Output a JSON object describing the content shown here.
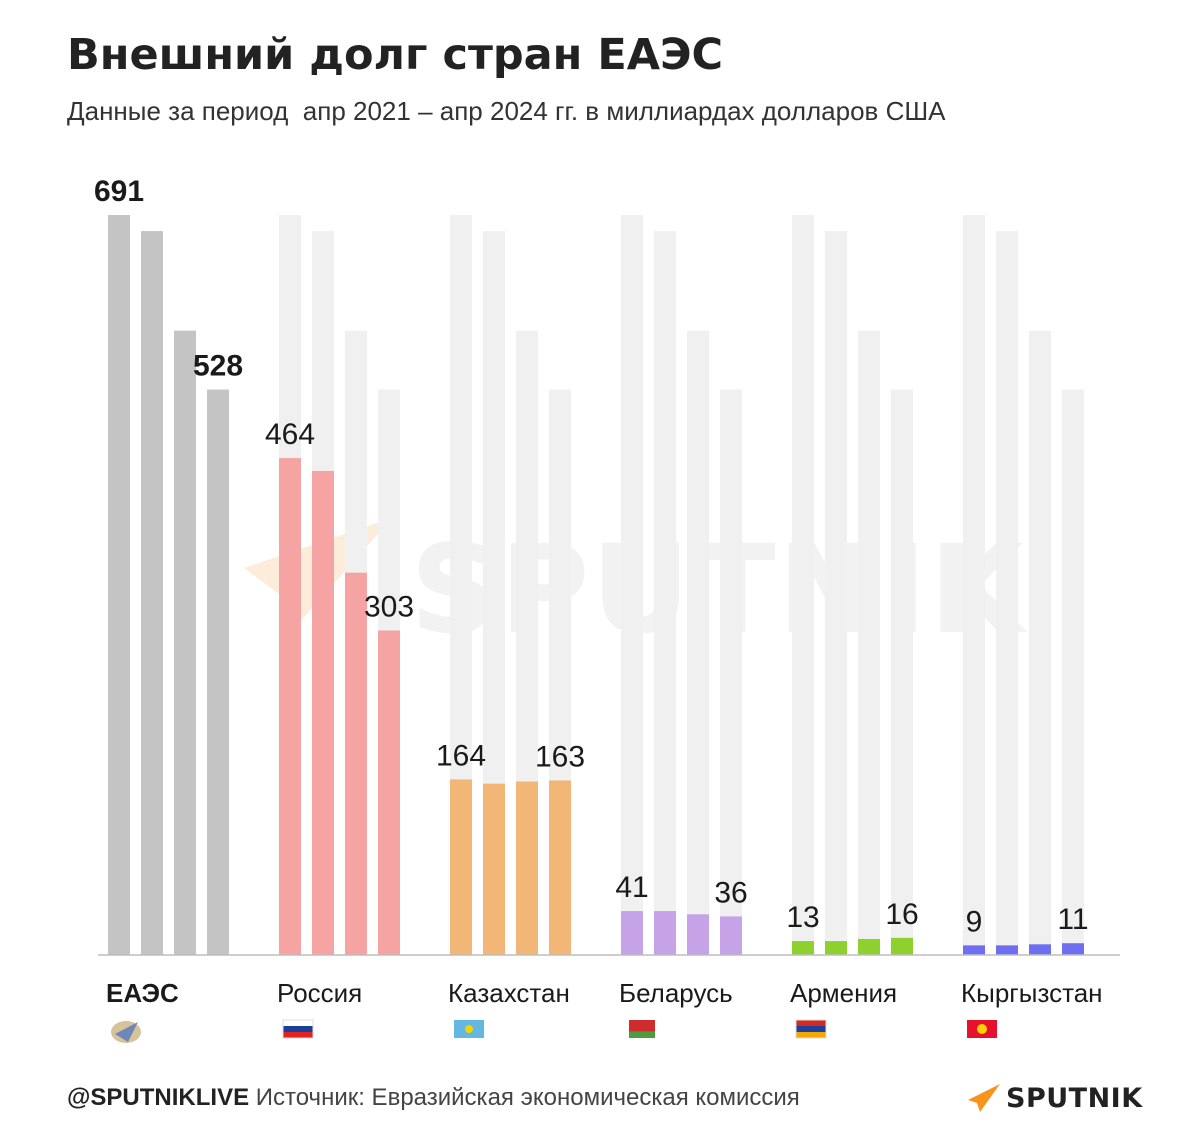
{
  "title": "Внешний долг стран ЕАЭС",
  "subtitle": "Данные за период  апр 2021 – апр 2024 гг. в миллиардах долларов США",
  "footer": {
    "handle": "@SPUTNIKLIVE",
    "source": "Источник: Евразийская экономическая комиссия"
  },
  "brand": {
    "name": "SPUTNIK",
    "watermark": "SPUTNIK",
    "accent": "#f7941d"
  },
  "chart_data": {
    "type": "bar",
    "title": "Внешний долг стран ЕАЭС",
    "subtitle": "Данные за период  апр 2021 – апр 2024 гг. в миллиардах долларов США",
    "ylim": [
      0,
      691
    ],
    "grid": false,
    "groups": [
      {
        "name": "ЕАЭС",
        "bold": true,
        "color": "#c4c4c4",
        "icon": "eaeu-emblem-icon",
        "values": [
          691,
          676,
          583,
          528
        ],
        "labels": [
          {
            "index": 0,
            "text": "691"
          },
          {
            "index": 3,
            "text": "528"
          }
        ]
      },
      {
        "name": "Россия",
        "bold": false,
        "color": "#f6a3a3",
        "icon": "flag-russia-icon",
        "flag": [
          "#ffffff",
          "#1c3f99",
          "#e2221e"
        ],
        "values": [
          464,
          452,
          357,
          303
        ],
        "labels": [
          {
            "index": 0,
            "text": "464"
          },
          {
            "index": 3,
            "text": "303"
          }
        ]
      },
      {
        "name": "Казахстан",
        "bold": false,
        "color": "#f2b777",
        "icon": "flag-kazakhstan-icon",
        "flag": [
          "#63b7e0"
        ],
        "values": [
          164,
          160,
          162,
          163
        ],
        "labels": [
          {
            "index": 0,
            "text": "164"
          },
          {
            "index": 3,
            "text": "163"
          }
        ]
      },
      {
        "name": "Беларусь",
        "bold": false,
        "color": "#c6a2e6",
        "icon": "flag-belarus-icon",
        "flag": [
          "#cf2d2d",
          "#4b9e3f"
        ],
        "values": [
          41,
          41,
          38,
          36
        ],
        "labels": [
          {
            "index": 0,
            "text": "41"
          },
          {
            "index": 3,
            "text": "36"
          }
        ]
      },
      {
        "name": "Армения",
        "bold": false,
        "color": "#8ed12f",
        "icon": "flag-armenia-icon",
        "flag": [
          "#d52b1e",
          "#1e3fa0",
          "#f2a800"
        ],
        "values": [
          13,
          13,
          15,
          16
        ],
        "labels": [
          {
            "index": 0,
            "text": "13"
          },
          {
            "index": 3,
            "text": "16"
          }
        ]
      },
      {
        "name": "Кыргызстан",
        "bold": false,
        "color": "#6e6ef0",
        "icon": "flag-kyrgyzstan-icon",
        "flag": [
          "#e8112d",
          "#ffd100"
        ],
        "values": [
          9,
          9,
          10,
          11
        ],
        "labels": [
          {
            "index": 0,
            "text": "9"
          },
          {
            "index": 3,
            "text": "11"
          }
        ]
      }
    ]
  }
}
